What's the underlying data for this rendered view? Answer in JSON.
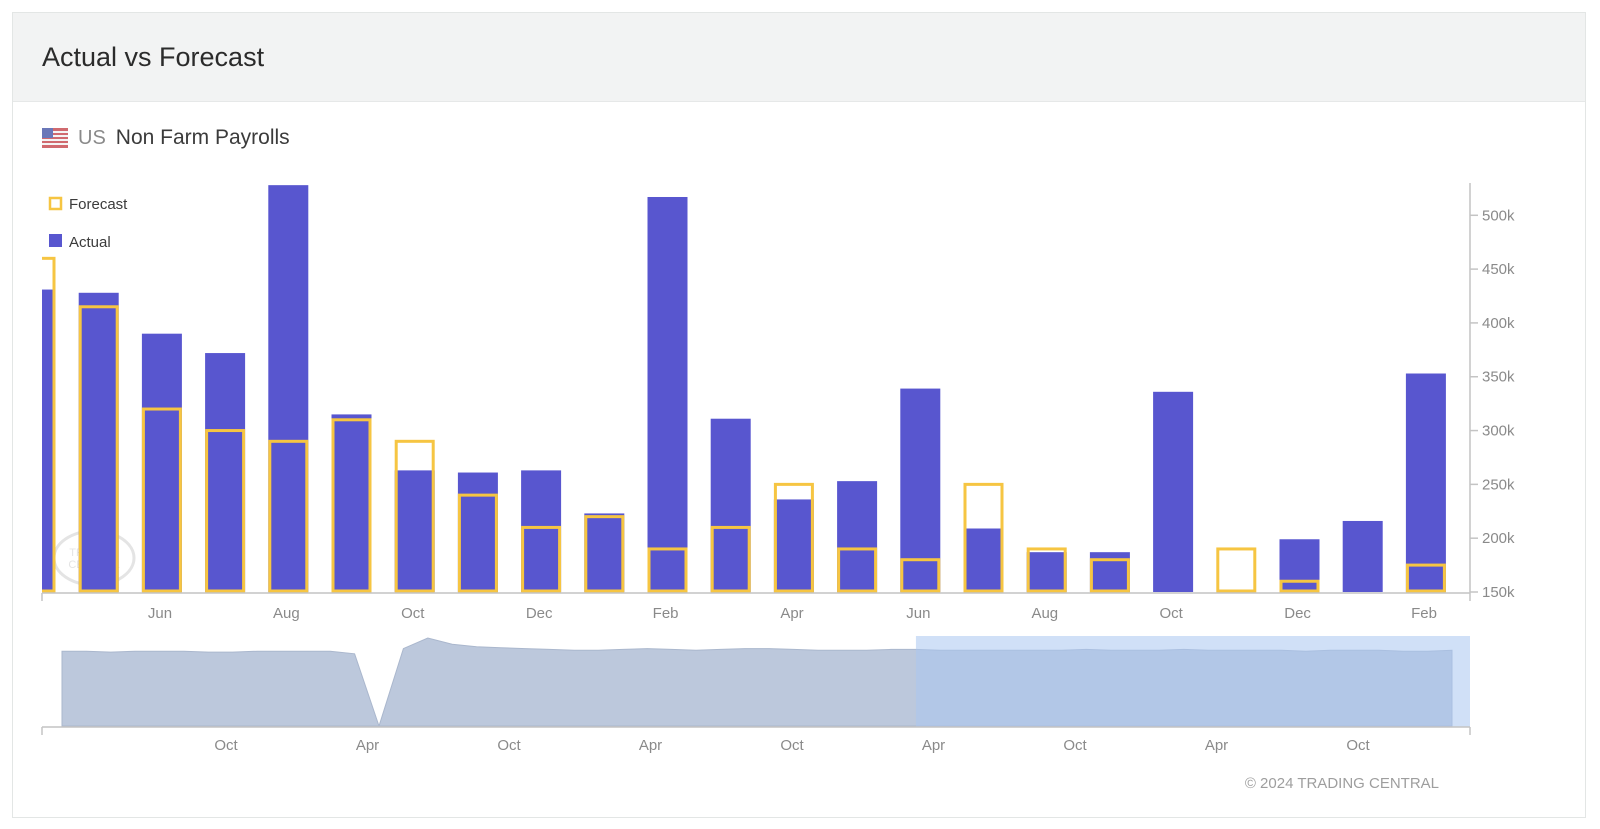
{
  "header": {
    "title": "Actual vs Forecast"
  },
  "indicator": {
    "country": "US",
    "name": "Non Farm Payrolls",
    "flag_icon": "us-flag-icon"
  },
  "copyright": "© 2024 TRADING CENTRAL",
  "watermark": "TRADING CENTRAL",
  "colors": {
    "actual": "#5856cf",
    "forecast": "#f6c542",
    "navigator_area": "#bcc8dc",
    "navigator_selection": "#aac7f0",
    "axis": "#c4c4c4",
    "tick_text": "#8a8a8a"
  },
  "chart_data": {
    "type": "bar",
    "legend": {
      "placement": "top-left",
      "entries": [
        "Forecast",
        "Actual"
      ]
    },
    "series": [
      {
        "name": "Actual",
        "values": [
          431,
          428,
          390,
          372,
          528,
          315,
          263,
          261,
          263,
          223,
          517,
          311,
          236,
          253,
          339,
          209,
          187,
          187,
          336,
          150,
          199,
          216,
          353
        ]
      },
      {
        "name": "Forecast",
        "values": [
          460,
          415,
          320,
          300,
          290,
          310,
          290,
          240,
          210,
          220,
          190,
          210,
          250,
          190,
          180,
          250,
          190,
          180,
          150,
          190,
          160,
          150,
          175
        ]
      }
    ],
    "x_tick_labels": [
      "Jun",
      "Aug",
      "Oct",
      "Dec",
      "Feb",
      "Apr",
      "Jun",
      "Aug",
      "Oct",
      "Dec",
      "Feb"
    ],
    "y_axis": {
      "position": "right",
      "range": [
        150,
        530
      ],
      "ticks": [
        150,
        200,
        250,
        300,
        350,
        400,
        450,
        500
      ],
      "tick_labels": [
        "150k",
        "200k",
        "250k",
        "300k",
        "350k",
        "400k",
        "450k",
        "500k"
      ]
    },
    "grid": false,
    "navigator": {
      "type": "area",
      "x_tick_labels": [
        "Oct",
        "Apr",
        "Oct",
        "Apr",
        "Oct",
        "Apr",
        "Oct",
        "Apr",
        "Oct"
      ],
      "values": [
        85,
        85,
        84,
        85,
        85,
        85,
        84,
        84,
        85,
        85,
        85,
        85,
        82,
        0,
        88,
        100,
        93,
        90,
        89,
        88,
        87,
        86,
        86,
        87,
        88,
        87,
        86,
        87,
        88,
        88,
        87,
        86,
        86,
        86,
        87,
        87,
        86,
        86,
        86,
        86,
        86,
        86,
        87,
        86,
        86,
        86,
        87,
        86,
        86,
        86,
        86,
        85,
        86,
        86,
        86,
        85,
        85,
        86
      ],
      "selected_range": [
        0.612,
        1.0
      ]
    }
  }
}
